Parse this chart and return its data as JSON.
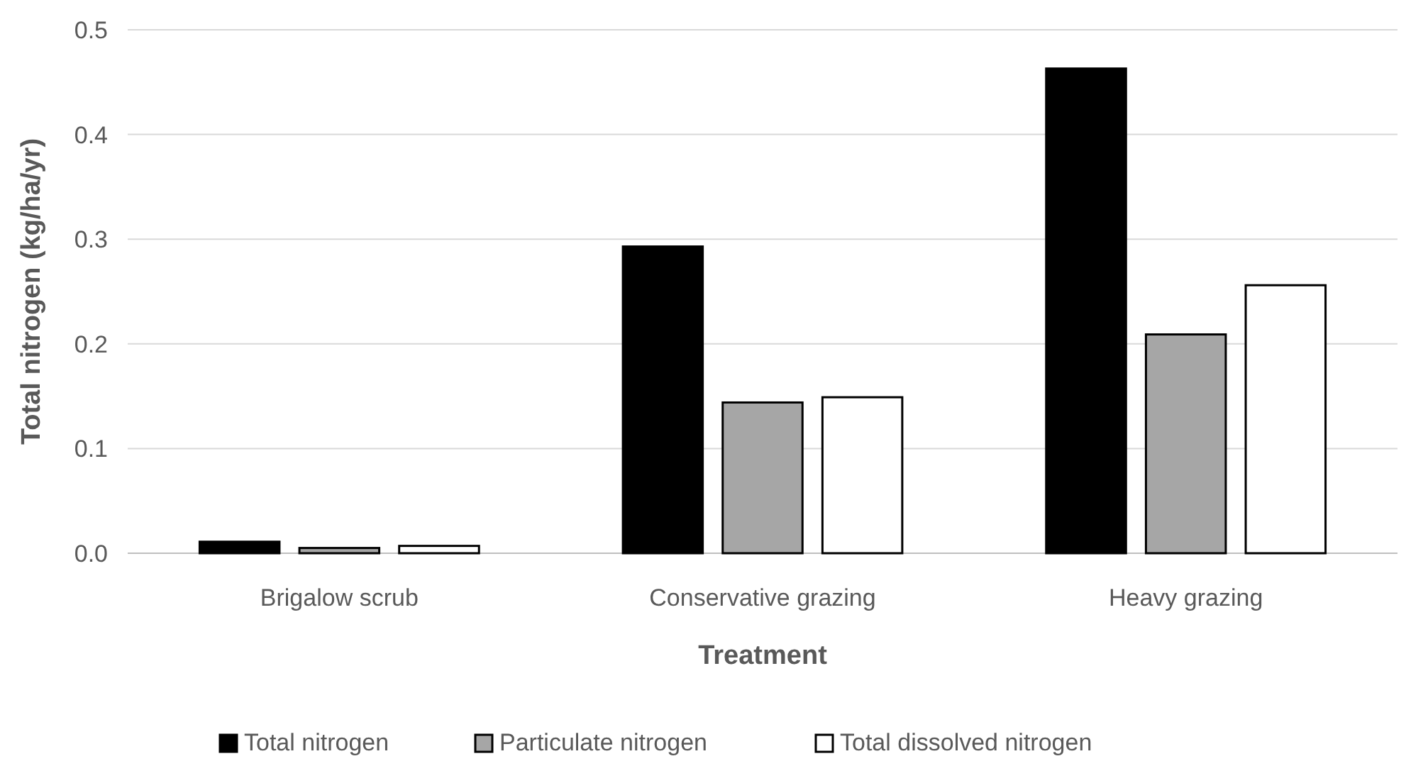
{
  "chart_data": {
    "type": "bar",
    "xlabel": "Treatment",
    "ylabel": "Total nitrogen (kg/ha/yr)",
    "categories": [
      "Brigalow scrub",
      "Conservative grazing",
      "Heavy grazing"
    ],
    "series": [
      {
        "name": "Total nitrogen",
        "color": "#000000",
        "values": [
          0.011,
          0.293,
          0.463
        ]
      },
      {
        "name": "Particulate nitrogen",
        "color": "#a6a6a6",
        "values": [
          0.005,
          0.144,
          0.209
        ]
      },
      {
        "name": "Total dissolved nitrogen",
        "color": "#ffffff",
        "values": [
          0.007,
          0.149,
          0.256
        ]
      }
    ],
    "ylim": [
      0,
      0.5
    ],
    "yticks": [
      {
        "value": 0,
        "label": "0.0"
      },
      0.1,
      0.2,
      0.3,
      0.4,
      0.5
    ],
    "grid": "y",
    "legend": "bottom"
  }
}
